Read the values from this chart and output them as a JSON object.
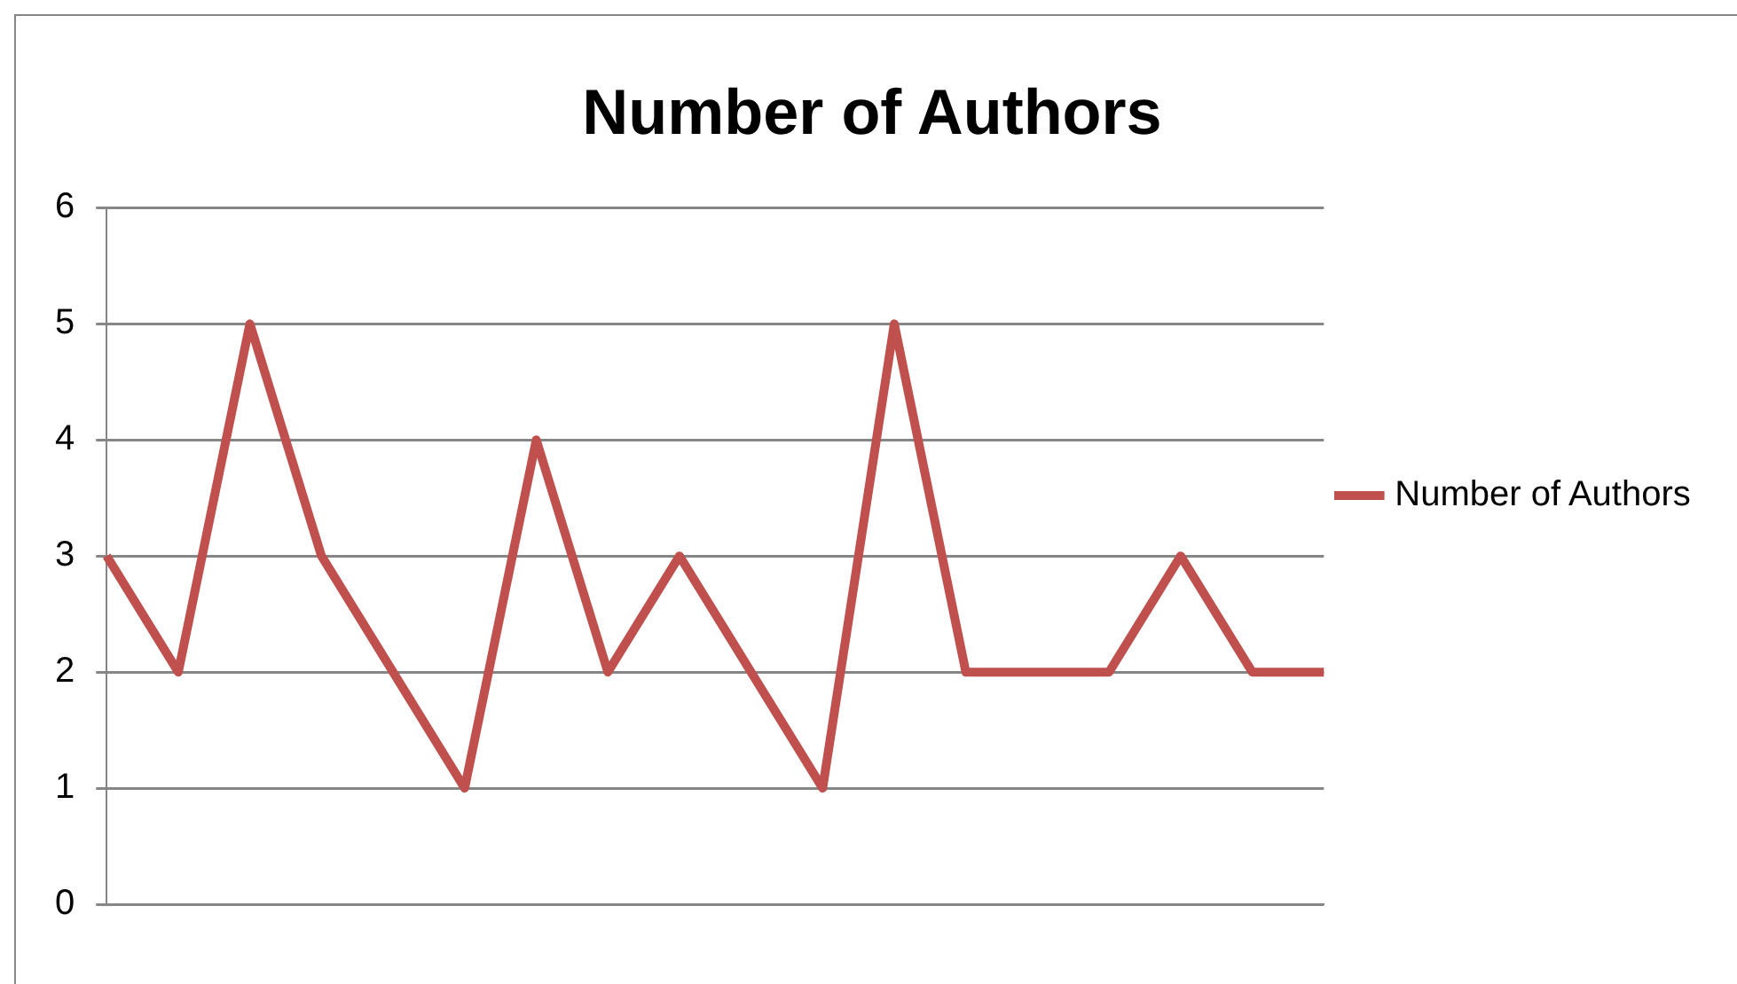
{
  "chart_data": {
    "type": "line",
    "title": "Number of Authors",
    "categories": [
      null,
      null,
      null,
      null,
      null,
      null,
      null,
      null,
      null,
      null,
      null,
      null,
      null,
      null,
      null,
      null,
      null,
      null
    ],
    "series": [
      {
        "name": "Number of Authors",
        "color": "#c0504d",
        "values": [
          3,
          2,
          5,
          3,
          2,
          1,
          4,
          2,
          3,
          2,
          1,
          5,
          2,
          2,
          2,
          3,
          2,
          2
        ]
      }
    ],
    "ylim": [
      0,
      6
    ],
    "yticks": [
      0,
      1,
      2,
      3,
      4,
      5,
      6
    ],
    "grid": "y",
    "legend": "right",
    "marker": "none",
    "line_style": "solid"
  }
}
